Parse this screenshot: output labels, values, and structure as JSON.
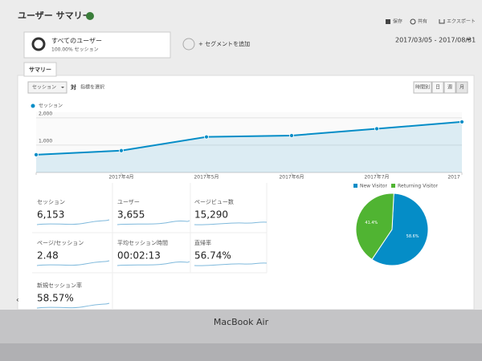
{
  "header": {
    "title": "ユーザー サマリー",
    "actions": [
      "保存",
      "共有",
      "エクスポート"
    ]
  },
  "segments": {
    "active": "すべてのユーザー",
    "active_share": "100.00% セッション",
    "add": "+ セグメントを追加"
  },
  "date_range": "2017/03/05 - 2017/08/31",
  "tab": "サマリー",
  "controls": {
    "metric": "セッション",
    "versus": "対",
    "select_metric": "指標を選択",
    "intervals": [
      "時間別",
      "日",
      "週",
      "月"
    ]
  },
  "metrics": [
    {
      "label": "セッション",
      "value": "6,153"
    },
    {
      "label": "ユーザー",
      "value": "3,655"
    },
    {
      "label": "ページビュー数",
      "value": "15,290"
    },
    {
      "label": "ページ/セッション",
      "value": "2.48"
    },
    {
      "label": "平均セッション時間",
      "value": "00:02:13"
    },
    {
      "label": "直帰率",
      "value": "56.74%"
    },
    {
      "label": "新規セッション率",
      "value": "58.57%"
    }
  ],
  "device": "MacBook Air",
  "chart_data": [
    {
      "type": "line",
      "categories": [
        null,
        "2017年4月",
        "2017年5月",
        "2017年6月",
        "2017年7月",
        "2017"
      ],
      "series": [
        {
          "name": "セッション",
          "color": "#058dc7",
          "values": [
            650,
            800,
            1300,
            1350,
            1600,
            1850
          ]
        }
      ],
      "ylim": [
        0,
        2200
      ],
      "yticks": [
        {
          "value": 1000,
          "label": "1,000"
        },
        {
          "value": 2000,
          "label": "2,000"
        }
      ],
      "grid": true
    },
    {
      "type": "pie",
      "categories": [
        "New Visitor",
        "Returning Visitor"
      ],
      "values": [
        58.6,
        41.4
      ],
      "value_labels": [
        "58.6%",
        "41.4%"
      ],
      "colors": [
        "#058dc7",
        "#50b432"
      ]
    }
  ]
}
